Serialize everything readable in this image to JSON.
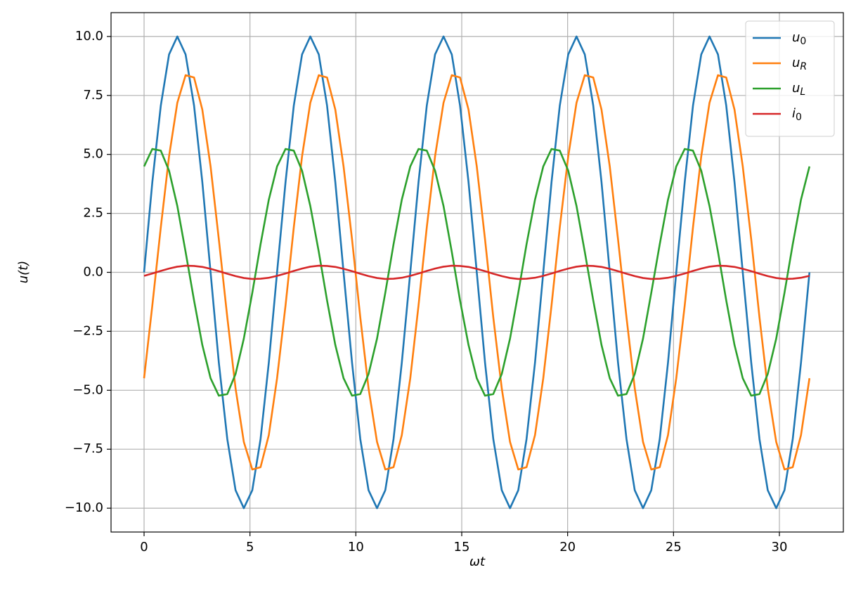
{
  "chart_data": {
    "type": "line",
    "xlabel": "ωt",
    "ylabel": "u(t)",
    "xlim": [
      -1.56,
      33.02
    ],
    "ylim": [
      -11.01,
      11.01
    ],
    "xticks": [
      0,
      5,
      10,
      15,
      20,
      25,
      30
    ],
    "yticks": [
      {
        "value": -10,
        "label": "−10.0"
      },
      {
        "value": -7.5,
        "label": "−7.5"
      },
      {
        "value": -5,
        "label": "−5.0"
      },
      {
        "value": -2.5,
        "label": "−2.5"
      },
      {
        "value": 0,
        "label": "0.0"
      },
      {
        "value": 2.5,
        "label": "2.5"
      },
      {
        "value": 5,
        "label": "5.0"
      },
      {
        "value": 7.5,
        "label": "7.5"
      },
      {
        "value": 10,
        "label": "10.0"
      }
    ],
    "grid": true,
    "legend": "upper right",
    "x": [
      0,
      0.39,
      0.79,
      1.18,
      1.57,
      1.96,
      2.36,
      2.75,
      3.14,
      3.53,
      3.93,
      4.32,
      4.71,
      5.11,
      5.5,
      5.89,
      6.28,
      6.68,
      7.07,
      7.46,
      7.85,
      8.25,
      8.64,
      9.03,
      9.42,
      9.82,
      10.21,
      10.6,
      11.0,
      11.39,
      11.78,
      12.17,
      12.57,
      12.96,
      13.35,
      13.74,
      14.14,
      14.53,
      14.92,
      15.32,
      15.71,
      16.1,
      16.49,
      16.89,
      17.28,
      17.67,
      18.06,
      18.46,
      18.85,
      19.24,
      19.63,
      20.03,
      20.42,
      20.81,
      21.21,
      21.6,
      21.99,
      22.38,
      22.78,
      23.17,
      23.56,
      23.95,
      24.35,
      24.74,
      25.13,
      25.53,
      25.92,
      26.31,
      26.7,
      27.1,
      27.49,
      27.88,
      28.27,
      28.67,
      29.06,
      29.45,
      29.85,
      30.24,
      30.63,
      31.02,
      31.42
    ],
    "series": [
      {
        "name": "u0",
        "color": "#1f77b4",
        "values": [
          0,
          3.83,
          7.07,
          9.24,
          10,
          9.24,
          7.07,
          3.83,
          0,
          -3.83,
          -7.07,
          -9.24,
          -10,
          -9.24,
          -7.07,
          -3.83,
          0,
          3.83,
          7.07,
          9.24,
          10,
          9.24,
          7.07,
          3.83,
          0,
          -3.83,
          -7.07,
          -9.24,
          -10,
          -9.24,
          -7.07,
          -3.83,
          0,
          3.83,
          7.07,
          9.24,
          10,
          9.24,
          7.07,
          3.83,
          0,
          -3.83,
          -7.07,
          -9.24,
          -10,
          -9.24,
          -7.07,
          -3.83,
          0,
          3.83,
          7.07,
          9.24,
          10,
          9.24,
          7.07,
          3.83,
          0,
          -3.83,
          -7.07,
          -9.24,
          -10,
          -9.24,
          -7.07,
          -3.83,
          0,
          3.83,
          7.07,
          9.24,
          10,
          9.24,
          7.07,
          3.83,
          0,
          -3.83,
          -7.07,
          -9.24,
          -10,
          -9.24,
          -7.07,
          -3.83,
          0
        ]
      },
      {
        "name": "uR",
        "color": "#ff7f0e",
        "values": [
          -4.49,
          -1.4,
          1.91,
          4.92,
          7.19,
          8.36,
          8.26,
          6.9,
          4.49,
          1.4,
          -1.91,
          -4.92,
          -7.19,
          -8.36,
          -8.26,
          -6.9,
          -4.49,
          -1.4,
          1.91,
          4.92,
          7.19,
          8.36,
          8.26,
          6.9,
          4.49,
          1.4,
          -1.91,
          -4.92,
          -7.19,
          -8.36,
          -8.26,
          -6.9,
          -4.49,
          -1.4,
          1.91,
          4.92,
          7.19,
          8.36,
          8.26,
          6.9,
          4.49,
          1.4,
          -1.91,
          -4.92,
          -7.19,
          -8.36,
          -8.26,
          -6.9,
          -4.49,
          -1.4,
          1.91,
          4.92,
          7.19,
          8.36,
          8.26,
          6.9,
          4.49,
          1.4,
          -1.91,
          -4.92,
          -7.19,
          -8.36,
          -8.26,
          -6.9,
          -4.49,
          -1.4,
          1.91,
          4.92,
          7.19,
          8.36,
          8.26,
          6.9,
          4.49,
          1.4,
          -1.91,
          -4.92,
          -7.19,
          -8.36,
          -8.26,
          -6.9,
          -4.49
        ]
      },
      {
        "name": "uL",
        "color": "#2ca02c",
        "values": [
          4.49,
          5.23,
          5.16,
          4.31,
          2.81,
          0.87,
          -1.19,
          -3.08,
          -4.49,
          -5.23,
          -5.16,
          -4.31,
          -2.81,
          -0.87,
          1.19,
          3.08,
          4.49,
          5.23,
          5.16,
          4.31,
          2.81,
          0.87,
          -1.19,
          -3.08,
          -4.49,
          -5.23,
          -5.16,
          -4.31,
          -2.81,
          -0.87,
          1.19,
          3.08,
          4.49,
          5.23,
          5.16,
          4.31,
          2.81,
          0.87,
          -1.19,
          -3.08,
          -4.49,
          -5.23,
          -5.16,
          -4.31,
          -2.81,
          -0.87,
          1.19,
          3.08,
          4.49,
          5.23,
          5.16,
          4.31,
          2.81,
          0.87,
          -1.19,
          -3.08,
          -4.49,
          -5.23,
          -5.16,
          -4.31,
          -2.81,
          -0.87,
          1.19,
          3.08,
          4.49,
          5.23,
          5.16,
          4.31,
          2.81,
          0.87,
          -1.19,
          -3.08,
          -4.49,
          -5.23,
          -5.16,
          -4.31,
          -2.81,
          -0.87,
          1.19,
          3.08,
          4.49
        ]
      },
      {
        "name": "i0",
        "color": "#d62728",
        "values": [
          -0.15,
          -0.05,
          0.06,
          0.16,
          0.24,
          0.28,
          0.27,
          0.23,
          0.15,
          0.05,
          -0.06,
          -0.16,
          -0.24,
          -0.28,
          -0.27,
          -0.23,
          -0.15,
          -0.05,
          0.06,
          0.16,
          0.24,
          0.28,
          0.27,
          0.23,
          0.15,
          0.05,
          -0.06,
          -0.16,
          -0.24,
          -0.28,
          -0.27,
          -0.23,
          -0.15,
          -0.05,
          0.06,
          0.16,
          0.24,
          0.28,
          0.27,
          0.23,
          0.15,
          0.05,
          -0.06,
          -0.16,
          -0.24,
          -0.28,
          -0.27,
          -0.23,
          -0.15,
          -0.05,
          0.06,
          0.16,
          0.24,
          0.28,
          0.27,
          0.23,
          0.15,
          0.05,
          -0.06,
          -0.16,
          -0.24,
          -0.28,
          -0.27,
          -0.23,
          -0.15,
          -0.05,
          0.06,
          0.16,
          0.24,
          0.28,
          0.27,
          0.23,
          0.15,
          0.05,
          -0.06,
          -0.16,
          -0.24,
          -0.28,
          -0.27,
          -0.23,
          -0.15
        ]
      }
    ]
  }
}
